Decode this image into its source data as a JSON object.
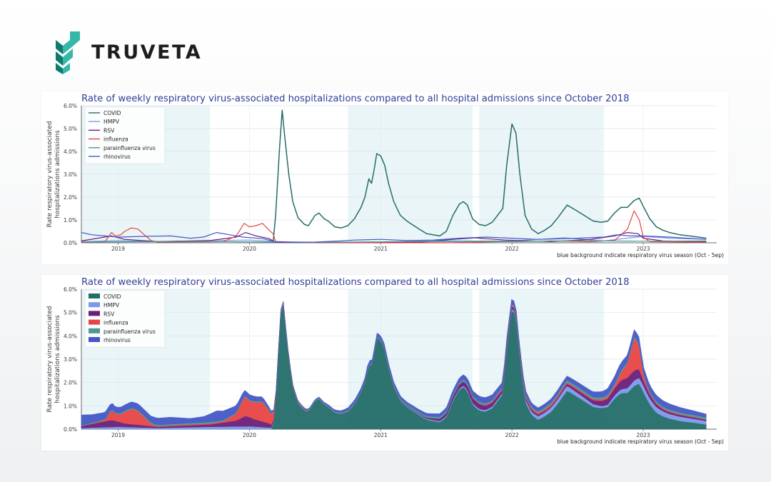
{
  "brand": {
    "name": "TRUVETA",
    "colors": {
      "logo_dark": "#0f7a70",
      "logo_light": "#36b8a8"
    }
  },
  "colors": {
    "season_band": "#eaf5f8",
    "series": {
      "COVID": "#236d68",
      "HMPV": "#7b99ea",
      "RSV": "#6a1f7a",
      "influenza": "#e84444",
      "parainfluenza virus": "#4a9a92",
      "rhinovirus": "#4557c6"
    }
  },
  "chart_data": [
    {
      "type": "line",
      "title": "Rate of weekly respiratory virus-associated hospitalizations compared to all hospital admissions since October 2018",
      "ylabel": [
        "Rate respiratory virus-associated",
        "hospitalizations admissions"
      ],
      "note": "blue background indicate respiratory virus season (Oct - 5ep)",
      "x_unit": "year",
      "xlim": [
        2018.72,
        2023.56
      ],
      "ylim": [
        0,
        6.0
      ],
      "y_ticks": [
        "0.0%",
        "1.0%",
        "2.0%",
        "3.0%",
        "4.0%",
        "5.0%",
        "6.0%"
      ],
      "x_ticks": [
        "2019",
        "2020",
        "2021",
        "2022",
        "2023"
      ],
      "grid": true,
      "legend_position": "top-left",
      "season_bands": [
        [
          2018.72,
          2019.7
        ],
        [
          2020.75,
          2021.7
        ],
        [
          2021.75,
          2022.7
        ]
      ],
      "series": [
        {
          "name": "COVID",
          "points": [
            [
              2020.18,
              0.0
            ],
            [
              2020.2,
              1.2
            ],
            [
              2020.23,
              4.2
            ],
            [
              2020.25,
              5.8
            ],
            [
              2020.27,
              4.6
            ],
            [
              2020.3,
              3.0
            ],
            [
              2020.33,
              1.8
            ],
            [
              2020.37,
              1.1
            ],
            [
              2020.42,
              0.8
            ],
            [
              2020.45,
              0.75
            ],
            [
              2020.5,
              1.2
            ],
            [
              2020.53,
              1.3
            ],
            [
              2020.57,
              1.05
            ],
            [
              2020.6,
              0.95
            ],
            [
              2020.65,
              0.7
            ],
            [
              2020.7,
              0.65
            ],
            [
              2020.75,
              0.75
            ],
            [
              2020.8,
              1.05
            ],
            [
              2020.85,
              1.55
            ],
            [
              2020.88,
              2.0
            ],
            [
              2020.91,
              2.8
            ],
            [
              2020.93,
              2.6
            ],
            [
              2020.95,
              3.2
            ],
            [
              2020.97,
              3.9
            ],
            [
              2021.0,
              3.8
            ],
            [
              2021.03,
              3.4
            ],
            [
              2021.06,
              2.6
            ],
            [
              2021.1,
              1.8
            ],
            [
              2021.15,
              1.2
            ],
            [
              2021.2,
              0.95
            ],
            [
              2021.28,
              0.65
            ],
            [
              2021.35,
              0.4
            ],
            [
              2021.45,
              0.3
            ],
            [
              2021.5,
              0.5
            ],
            [
              2021.55,
              1.2
            ],
            [
              2021.6,
              1.7
            ],
            [
              2021.63,
              1.8
            ],
            [
              2021.66,
              1.65
            ],
            [
              2021.7,
              1.05
            ],
            [
              2021.75,
              0.8
            ],
            [
              2021.8,
              0.75
            ],
            [
              2021.85,
              0.9
            ],
            [
              2021.93,
              1.5
            ],
            [
              2021.96,
              3.4
            ],
            [
              2022.0,
              5.2
            ],
            [
              2022.03,
              4.8
            ],
            [
              2022.06,
              3.0
            ],
            [
              2022.1,
              1.2
            ],
            [
              2022.15,
              0.6
            ],
            [
              2022.2,
              0.4
            ],
            [
              2022.25,
              0.55
            ],
            [
              2022.3,
              0.75
            ],
            [
              2022.35,
              1.1
            ],
            [
              2022.42,
              1.65
            ],
            [
              2022.48,
              1.45
            ],
            [
              2022.55,
              1.2
            ],
            [
              2022.62,
              0.95
            ],
            [
              2022.68,
              0.9
            ],
            [
              2022.73,
              0.95
            ],
            [
              2022.78,
              1.3
            ],
            [
              2022.83,
              1.55
            ],
            [
              2022.88,
              1.55
            ],
            [
              2022.93,
              1.85
            ],
            [
              2022.97,
              1.95
            ],
            [
              2023.0,
              1.6
            ],
            [
              2023.05,
              1.05
            ],
            [
              2023.1,
              0.7
            ],
            [
              2023.15,
              0.55
            ],
            [
              2023.2,
              0.45
            ],
            [
              2023.28,
              0.35
            ],
            [
              2023.35,
              0.3
            ],
            [
              2023.42,
              0.25
            ],
            [
              2023.48,
              0.2
            ]
          ]
        },
        {
          "name": "HMPV",
          "points": [
            [
              2018.72,
              0.05
            ],
            [
              2019.0,
              0.1
            ],
            [
              2019.3,
              0.05
            ],
            [
              2019.7,
              0.1
            ],
            [
              2020.0,
              0.12
            ],
            [
              2020.2,
              0.05
            ],
            [
              2020.5,
              0.02
            ],
            [
              2021.0,
              0.02
            ],
            [
              2021.5,
              0.05
            ],
            [
              2022.0,
              0.08
            ],
            [
              2022.4,
              0.22
            ],
            [
              2022.7,
              0.08
            ],
            [
              2023.0,
              0.28
            ],
            [
              2023.2,
              0.2
            ],
            [
              2023.48,
              0.15
            ]
          ]
        },
        {
          "name": "RSV",
          "points": [
            [
              2018.72,
              0.08
            ],
            [
              2018.95,
              0.3
            ],
            [
              2019.05,
              0.15
            ],
            [
              2019.3,
              0.05
            ],
            [
              2019.7,
              0.1
            ],
            [
              2019.9,
              0.25
            ],
            [
              2019.97,
              0.45
            ],
            [
              2020.05,
              0.3
            ],
            [
              2020.15,
              0.18
            ],
            [
              2020.2,
              0.02
            ],
            [
              2020.6,
              0.01
            ],
            [
              2021.3,
              0.03
            ],
            [
              2021.55,
              0.15
            ],
            [
              2021.72,
              0.22
            ],
            [
              2021.8,
              0.18
            ],
            [
              2021.95,
              0.12
            ],
            [
              2022.3,
              0.05
            ],
            [
              2022.6,
              0.15
            ],
            [
              2022.78,
              0.3
            ],
            [
              2022.88,
              0.45
            ],
            [
              2022.96,
              0.4
            ],
            [
              2023.0,
              0.2
            ],
            [
              2023.15,
              0.08
            ],
            [
              2023.48,
              0.05
            ]
          ]
        },
        {
          "name": "influenza",
          "points": [
            [
              2018.72,
              0.0
            ],
            [
              2018.9,
              0.05
            ],
            [
              2018.95,
              0.45
            ],
            [
              2018.98,
              0.3
            ],
            [
              2019.02,
              0.35
            ],
            [
              2019.05,
              0.5
            ],
            [
              2019.1,
              0.65
            ],
            [
              2019.15,
              0.6
            ],
            [
              2019.2,
              0.35
            ],
            [
              2019.25,
              0.1
            ],
            [
              2019.3,
              0.03
            ],
            [
              2019.8,
              0.05
            ],
            [
              2019.9,
              0.3
            ],
            [
              2019.96,
              0.85
            ],
            [
              2020.0,
              0.7
            ],
            [
              2020.05,
              0.75
            ],
            [
              2020.1,
              0.85
            ],
            [
              2020.15,
              0.55
            ],
            [
              2020.18,
              0.4
            ],
            [
              2020.2,
              0.05
            ],
            [
              2020.5,
              0.0
            ],
            [
              2021.0,
              0.0
            ],
            [
              2021.5,
              0.0
            ],
            [
              2021.9,
              0.05
            ],
            [
              2022.0,
              0.05
            ],
            [
              2022.3,
              0.08
            ],
            [
              2022.6,
              0.05
            ],
            [
              2022.78,
              0.1
            ],
            [
              2022.88,
              0.6
            ],
            [
              2022.93,
              1.4
            ],
            [
              2022.97,
              1.0
            ],
            [
              2023.0,
              0.25
            ],
            [
              2023.05,
              0.05
            ],
            [
              2023.48,
              0.02
            ]
          ]
        },
        {
          "name": "parainfluenza virus",
          "points": [
            [
              2018.72,
              0.03
            ],
            [
              2019.2,
              0.05
            ],
            [
              2019.6,
              0.06
            ],
            [
              2020.0,
              0.04
            ],
            [
              2020.5,
              0.02
            ],
            [
              2021.0,
              0.04
            ],
            [
              2021.5,
              0.08
            ],
            [
              2022.0,
              0.06
            ],
            [
              2022.5,
              0.09
            ],
            [
              2023.0,
              0.07
            ],
            [
              2023.48,
              0.08
            ]
          ]
        },
        {
          "name": "rhinovirus",
          "points": [
            [
              2018.72,
              0.45
            ],
            [
              2018.8,
              0.35
            ],
            [
              2018.9,
              0.3
            ],
            [
              2019.0,
              0.25
            ],
            [
              2019.2,
              0.28
            ],
            [
              2019.4,
              0.3
            ],
            [
              2019.55,
              0.2
            ],
            [
              2019.65,
              0.25
            ],
            [
              2019.75,
              0.45
            ],
            [
              2019.85,
              0.35
            ],
            [
              2019.95,
              0.25
            ],
            [
              2020.1,
              0.18
            ],
            [
              2020.2,
              0.05
            ],
            [
              2020.3,
              0.02
            ],
            [
              2020.5,
              0.03
            ],
            [
              2020.7,
              0.08
            ],
            [
              2020.8,
              0.12
            ],
            [
              2021.0,
              0.15
            ],
            [
              2021.2,
              0.1
            ],
            [
              2021.4,
              0.12
            ],
            [
              2021.6,
              0.2
            ],
            [
              2021.8,
              0.25
            ],
            [
              2022.0,
              0.2
            ],
            [
              2022.2,
              0.15
            ],
            [
              2022.5,
              0.2
            ],
            [
              2022.7,
              0.25
            ],
            [
              2022.8,
              0.35
            ],
            [
              2022.9,
              0.3
            ],
            [
              2023.0,
              0.3
            ],
            [
              2023.2,
              0.25
            ],
            [
              2023.48,
              0.15
            ]
          ]
        }
      ]
    },
    {
      "type": "area",
      "stacked": true,
      "title": "Rate of weekly respiratory virus-associated hospitalizations compared to all hospital admissions since October 2018",
      "ylabel": [
        "Rate respiratory virus-associated",
        "hospitalizations admissions"
      ],
      "note": "blue background indicate respiratory virus season (Oct - 5ep)",
      "x_unit": "year",
      "xlim": [
        2018.72,
        2023.56
      ],
      "ylim": [
        0,
        6.0
      ],
      "y_ticks": [
        "0.0%",
        "1.0%",
        "2.0%",
        "3.0%",
        "4.0%",
        "5.0%",
        "6.0%"
      ],
      "x_ticks": [
        "2019",
        "2020",
        "2021",
        "2022",
        "2023"
      ],
      "grid": true,
      "legend_position": "top-left",
      "season_bands": [
        [
          2018.72,
          2019.7
        ],
        [
          2020.75,
          2021.7
        ],
        [
          2021.75,
          2022.7
        ]
      ],
      "series_order": [
        "COVID",
        "HMPV",
        "RSV",
        "influenza",
        "parainfluenza virus",
        "rhinovirus"
      ]
    }
  ]
}
